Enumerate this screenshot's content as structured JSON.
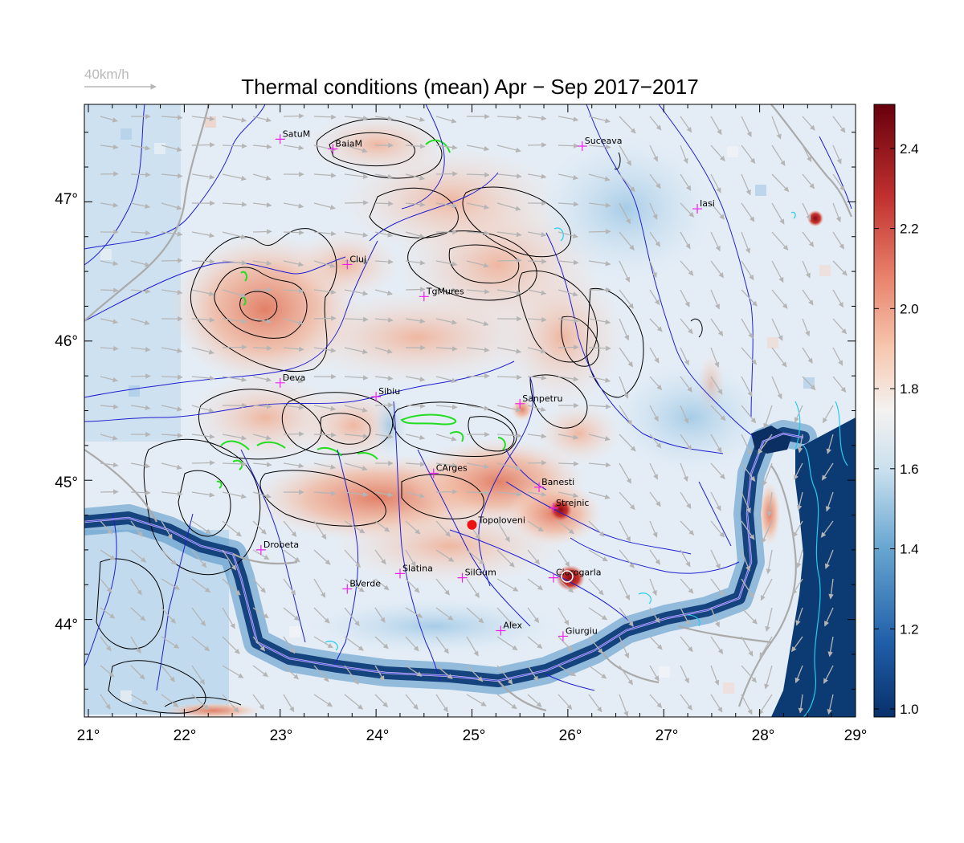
{
  "title": "Thermal conditions (mean) Apr − Sep  2017−2017",
  "wind_scale_label": "40km/h",
  "map": {
    "lon_range": [
      21,
      29
    ],
    "lat_range": [
      43.3,
      47.7
    ],
    "x_ticks": [
      "21°",
      "22°",
      "23°",
      "24°",
      "25°",
      "26°",
      "27°",
      "28°",
      "29°"
    ],
    "y_ticks": [
      "44°",
      "45°",
      "46°",
      "47°"
    ],
    "colors": {
      "low": "#08306b",
      "mid": "#f7f7f7",
      "high": "#67000d",
      "rivers": "#1f1fcf",
      "borders": "#aaaaaa",
      "contours": "#000000",
      "peaks": "#22dd22",
      "lakes": "#22ccee",
      "markers": "#ee22ee",
      "wind": "#b5b5b5",
      "highlight": "#ee1111"
    }
  },
  "cities": [
    {
      "name": "SatuM",
      "lon": 23.0,
      "lat": 47.45
    },
    {
      "name": "BaiaM",
      "lon": 23.55,
      "lat": 47.38
    },
    {
      "name": "Suceava",
      "lon": 26.15,
      "lat": 47.4
    },
    {
      "name": "Iasi",
      "lon": 27.35,
      "lat": 46.95
    },
    {
      "name": "Cluj",
      "lon": 23.7,
      "lat": 46.55
    },
    {
      "name": "TgMures",
      "lon": 24.5,
      "lat": 46.32
    },
    {
      "name": "Deva",
      "lon": 23.0,
      "lat": 45.7
    },
    {
      "name": "Sibiu",
      "lon": 24.0,
      "lat": 45.6
    },
    {
      "name": "Sanpetru",
      "lon": 25.5,
      "lat": 45.55
    },
    {
      "name": "CArges",
      "lon": 24.6,
      "lat": 45.05
    },
    {
      "name": "Banesti",
      "lon": 25.7,
      "lat": 44.95
    },
    {
      "name": "Strejnic",
      "lon": 25.85,
      "lat": 44.8
    },
    {
      "name": "Drobeta",
      "lon": 22.8,
      "lat": 44.5
    },
    {
      "name": "Slatina",
      "lon": 24.25,
      "lat": 44.33
    },
    {
      "name": "SilGum",
      "lon": 24.9,
      "lat": 44.3
    },
    {
      "name": "Ciorogarla",
      "lon": 25.85,
      "lat": 44.3
    },
    {
      "name": "BVerde",
      "lon": 23.7,
      "lat": 44.22
    },
    {
      "name": "Alex",
      "lon": 25.3,
      "lat": 43.92
    },
    {
      "name": "Giurgiu",
      "lon": 25.95,
      "lat": 43.88
    }
  ],
  "highlight_city": {
    "name": "Topoloveni",
    "lon": 25.0,
    "lat": 44.68
  },
  "colorbar": {
    "ticks": [
      "1.0",
      "1.2",
      "1.4",
      "1.6",
      "1.8",
      "2.0",
      "2.2",
      "2.4"
    ],
    "min": 0.98,
    "max": 2.51
  }
}
